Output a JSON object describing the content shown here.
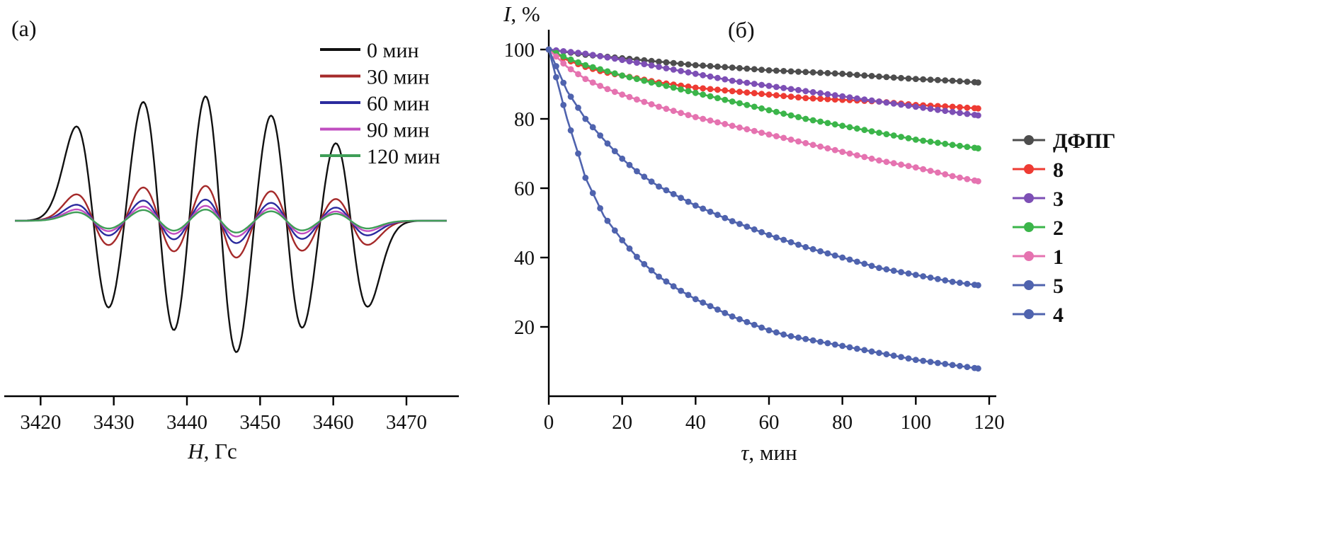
{
  "page": {
    "background": "#ffffff"
  },
  "chart_data": [
    {
      "id": "panel_a",
      "type": "line",
      "title": "(а)",
      "xlabel_var": "H",
      "xlabel_rest": ", Гс",
      "xlim": [
        3416,
        3476
      ],
      "xticks": [
        3420,
        3430,
        3440,
        3450,
        3460,
        3470
      ],
      "line_centers": [
        3427.2,
        3436.2,
        3444.6,
        3453.6,
        3462.4
      ],
      "line_width_sigma": 2.3,
      "line_rel_intensities": [
        0.68,
        0.9,
        1.0,
        0.82,
        0.62
      ],
      "series": [
        {
          "name": "0 мин",
          "color": "#111111",
          "amplitude": 1.0
        },
        {
          "name": "30 мин",
          "color": "#a52a2a",
          "amplitude": 0.28
        },
        {
          "name": "60 мин",
          "color": "#2b2b9e",
          "amplitude": 0.17
        },
        {
          "name": "90 мин",
          "color": "#c04ec0",
          "amplitude": 0.12
        },
        {
          "name": "120 мин",
          "color": "#3f9e57",
          "amplitude": 0.09
        }
      ],
      "legend_position": "top-right"
    },
    {
      "id": "panel_b",
      "type": "scatter",
      "title": "(б)",
      "xlabel_var": "τ",
      "xlabel_rest": ", мин",
      "ylabel_var": "I",
      "ylabel_rest": ", %",
      "xlim": [
        0,
        120
      ],
      "ylim": [
        0,
        100
      ],
      "xticks": [
        0,
        20,
        40,
        60,
        80,
        100,
        120
      ],
      "yticks": [
        20,
        40,
        60,
        80,
        100
      ],
      "legend_position": "right",
      "series": [
        {
          "name": "ДФПГ",
          "color": "#4d4d4d",
          "x": [
            0,
            10,
            20,
            30,
            40,
            50,
            60,
            70,
            80,
            90,
            100,
            110,
            117
          ],
          "y": [
            100,
            98.5,
            97.5,
            96.5,
            95.5,
            94.8,
            94,
            93.5,
            93,
            92.2,
            91.5,
            91,
            90.5
          ]
        },
        {
          "name": "8",
          "color": "#ee3b33",
          "x": [
            0,
            5,
            10,
            15,
            20,
            30,
            40,
            50,
            60,
            70,
            80,
            90,
            100,
            110,
            117
          ],
          "y": [
            100,
            97,
            95,
            93.5,
            92.5,
            90.5,
            89,
            88,
            87,
            86,
            85.5,
            85,
            84,
            83.5,
            83
          ]
        },
        {
          "name": "3",
          "color": "#7d4fb5",
          "x": [
            0,
            10,
            20,
            30,
            40,
            50,
            60,
            70,
            80,
            90,
            100,
            110,
            117
          ],
          "y": [
            100,
            98.8,
            97,
            95,
            93,
            91,
            89.5,
            88,
            86.5,
            85,
            83.5,
            82,
            81
          ]
        },
        {
          "name": "2",
          "color": "#3bb54a",
          "x": [
            0,
            5,
            10,
            15,
            20,
            30,
            40,
            50,
            60,
            70,
            80,
            90,
            100,
            110,
            117
          ],
          "y": [
            100,
            97.5,
            95.5,
            94,
            92.5,
            90,
            87.5,
            85,
            82.5,
            80,
            78,
            76,
            74,
            72.5,
            71.5
          ]
        },
        {
          "name": "1",
          "color": "#e573b0",
          "x": [
            0,
            5,
            10,
            15,
            20,
            30,
            40,
            50,
            60,
            70,
            80,
            90,
            100,
            110,
            117
          ],
          "y": [
            100,
            95,
            91.5,
            89,
            87,
            83.5,
            80.5,
            78,
            75.5,
            73,
            70.5,
            68,
            66,
            63.5,
            62
          ]
        },
        {
          "name": "5",
          "color": "#4f63ae",
          "x": [
            0,
            5,
            10,
            15,
            20,
            25,
            30,
            40,
            50,
            60,
            70,
            80,
            90,
            100,
            110,
            117
          ],
          "y": [
            100,
            88,
            80,
            74,
            68.5,
            64,
            60.5,
            55,
            50.5,
            46.5,
            43,
            40,
            37,
            35,
            33,
            32
          ]
        },
        {
          "name": "4",
          "color": "#4f63ae",
          "x": [
            0,
            3,
            5,
            8,
            10,
            15,
            20,
            25,
            30,
            35,
            40,
            45,
            50,
            55,
            60,
            65,
            70,
            80,
            90,
            100,
            110,
            117
          ],
          "y": [
            100,
            88,
            80,
            70,
            63,
            52,
            45,
            39,
            34.5,
            31,
            28,
            25.5,
            23,
            21,
            19,
            17.5,
            16.5,
            14.5,
            12.5,
            10.5,
            9,
            8
          ]
        }
      ]
    }
  ]
}
